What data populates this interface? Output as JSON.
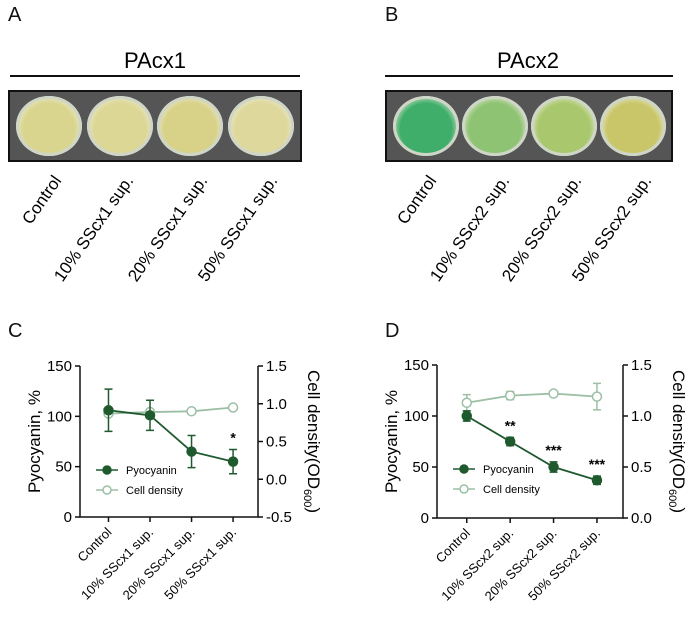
{
  "panels": {
    "A": {
      "label": "A",
      "title": "PAcx1",
      "categories": [
        "Control",
        "10% SScx1 sup.",
        "20% SScx1 sup.",
        "50% SScx1 sup."
      ],
      "well_colors": [
        "#d9d58f",
        "#dcd795",
        "#d8d188",
        "#ded89c"
      ]
    },
    "B": {
      "label": "B",
      "title": "PAcx2",
      "categories": [
        "Control",
        "10% SScx2 sup.",
        "20% SScx2 sup.",
        "50% SScx2 sup."
      ],
      "well_colors": [
        "#3fae6a",
        "#8ec373",
        "#a9c86e",
        "#c9c66a"
      ]
    }
  },
  "chart_data": [
    {
      "panel": "C",
      "type": "line",
      "categories": [
        "Control",
        "10% SScx1 sup.",
        "20% SScx1 sup.",
        "50% SScx1 sup."
      ],
      "ylabel": "Pyocyanin, %",
      "y2label": "Cell density(OD",
      "y2label_sub": "600",
      "y2label_end": ")",
      "ylim": [
        0,
        150
      ],
      "y2lim": [
        -0.5,
        1.5
      ],
      "yticks": [
        "0",
        "50",
        "100",
        "150"
      ],
      "y2ticks": [
        "-0.5",
        "0.0",
        "0.5",
        "1.0",
        "1.5"
      ],
      "legend": "center-left",
      "series": [
        {
          "name": "Pyocyanin",
          "axis": "left",
          "values": [
            106,
            101,
            65,
            55
          ],
          "errors": [
            21,
            15,
            16,
            12
          ],
          "color": "#1f5a2e",
          "filled": true
        },
        {
          "name": "Cell density",
          "axis": "right",
          "values": [
            0.87,
            0.89,
            0.9,
            0.95
          ],
          "errors": [
            0,
            0,
            0,
            0
          ],
          "color": "#9dbfa5",
          "filled": false
        }
      ],
      "annotations": [
        "",
        "",
        "",
        "*"
      ]
    },
    {
      "panel": "D",
      "type": "line",
      "categories": [
        "Control",
        "10% SScx2 sup.",
        "20% SScx2 sup.",
        "50% SScx2 sup."
      ],
      "ylabel": "Pyocyanin, %",
      "y2label": "Cell density(OD",
      "y2label_sub": "600",
      "y2label_end": ")",
      "ylim": [
        0,
        150
      ],
      "y2lim": [
        0,
        1.5
      ],
      "yticks": [
        "0",
        "50",
        "100",
        "150"
      ],
      "y2ticks": [
        "0.0",
        "0.5",
        "1.0",
        "1.5"
      ],
      "legend": "center-left",
      "series": [
        {
          "name": "Pyocyanin",
          "axis": "left",
          "values": [
            100,
            75,
            50,
            37
          ],
          "errors": [
            5,
            4,
            5,
            4
          ],
          "color": "#1f5a2e",
          "filled": true
        },
        {
          "name": "Cell density",
          "axis": "right",
          "values": [
            1.13,
            1.2,
            1.22,
            1.19
          ],
          "errors": [
            0.08,
            0.04,
            0.02,
            0.13
          ],
          "color": "#9dbfa5",
          "filled": false
        }
      ],
      "annotations": [
        "",
        "**",
        "***",
        "***"
      ]
    }
  ]
}
